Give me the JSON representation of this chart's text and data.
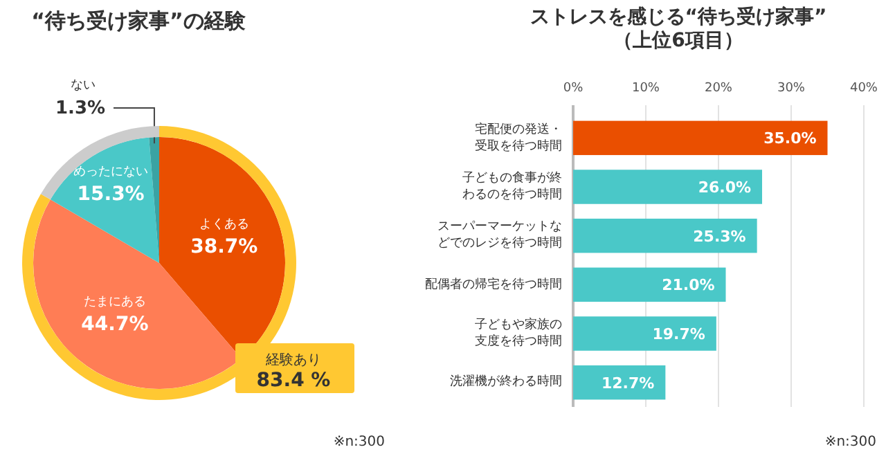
{
  "chart_data": [
    {
      "type": "pie",
      "title": "“待ち受け家事”の経験",
      "categories": [
        "よくある",
        "たまにある",
        "めったにない",
        "ない"
      ],
      "values": [
        38.7,
        44.7,
        15.3,
        1.3
      ],
      "colors": [
        "#ea4f00",
        "#ff7d55",
        "#4ac8c8",
        "#3aa3a3"
      ],
      "value_labels": [
        "38.7%",
        "44.7%",
        "15.3%",
        "1.3%"
      ],
      "annotations": [
        "※n:300"
      ]
    },
    {
      "type": "donut",
      "categories": [
        "経験あり",
        null
      ],
      "values": [
        83.4,
        16.6
      ],
      "colors": [
        "#ffc832",
        "#cccccc"
      ],
      "value_labels": [
        "83.4 %",
        null
      ]
    },
    {
      "type": "bar",
      "orientation": "horizontal",
      "title": "ストレスを感じる“待ち受け家事”\n（上位6項目）",
      "categories": [
        "宅配便の発送・受取を待つ時間",
        "子どもの食事が終わるのを待つ時間",
        "スーパーマーケットなどでのレジを待つ時間",
        "配偶者の帰宅を待つ時間",
        "子どもや家族の支度を待つ時間",
        "洗濯機が終わる時間"
      ],
      "values": [
        35.0,
        26.0,
        25.3,
        21.0,
        19.7,
        12.7
      ],
      "colors": [
        "#ea4f00",
        "#4ac8c8",
        "#4ac8c8",
        "#4ac8c8",
        "#4ac8c8",
        "#4ac8c8"
      ],
      "value_labels": [
        "35.0%",
        "26.0%",
        "25.3%",
        "21.0%",
        "19.7%",
        "12.7%"
      ],
      "xlim": [
        0,
        40
      ],
      "xticks": [
        {
          "value": 0,
          "label": "0%"
        },
        {
          "value": 10,
          "label": "10%"
        },
        {
          "value": 20,
          "label": "20%"
        },
        {
          "value": 30,
          "label": "30%"
        },
        {
          "value": 40,
          "label": "40%"
        }
      ],
      "grid": "x",
      "annotations": [
        "※n:300"
      ]
    }
  ]
}
